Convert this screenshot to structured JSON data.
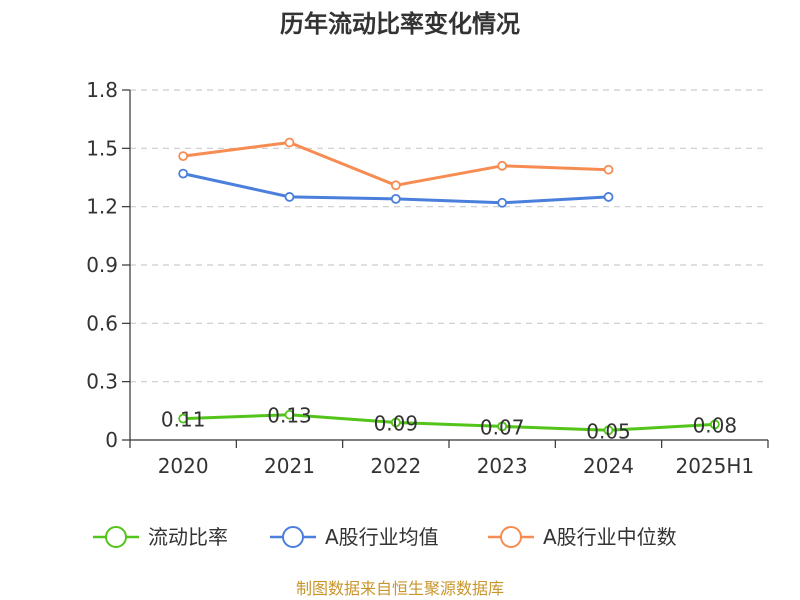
{
  "chart_data": {
    "type": "line",
    "title": "历年流动比率变化情况",
    "categories": [
      "2020",
      "2021",
      "2022",
      "2023",
      "2024",
      "2025H1"
    ],
    "y_ticks": [
      "0",
      "0.3",
      "0.6",
      "0.9",
      "1.2",
      "1.5",
      "1.8"
    ],
    "ylim": [
      0,
      1.8
    ],
    "grid": true,
    "legend_position": "bottom",
    "series": [
      {
        "name": "流动比率",
        "color": "#52c41a",
        "values": [
          0.11,
          0.13,
          0.09,
          0.07,
          0.05,
          0.08
        ],
        "labels": [
          "0.11",
          "0.13",
          "0.09",
          "0.07",
          "0.05",
          "0.08"
        ]
      },
      {
        "name": "A股行业均值",
        "color": "#4a7fdc",
        "values": [
          1.37,
          1.25,
          1.24,
          1.22,
          1.25,
          null
        ]
      },
      {
        "name": "A股行业中位数",
        "color": "#f78c52",
        "values": [
          1.46,
          1.53,
          1.31,
          1.41,
          1.39,
          null
        ]
      }
    ]
  },
  "footer": {
    "source": "制图数据来自恒生聚源数据库"
  }
}
